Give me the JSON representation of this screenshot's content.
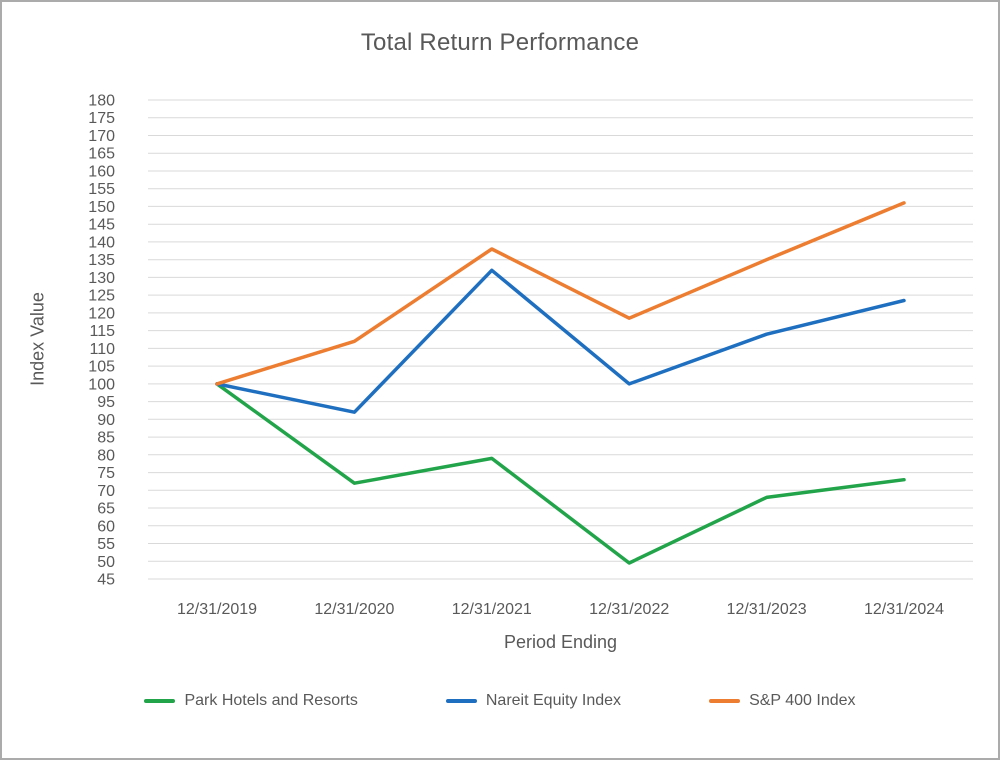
{
  "chart_data": {
    "type": "line",
    "title": "Total Return Performance",
    "xlabel": "Period Ending",
    "ylabel": "Index Value",
    "categories": [
      "12/31/2019",
      "12/31/2020",
      "12/31/2021",
      "12/31/2022",
      "12/31/2023",
      "12/31/2024"
    ],
    "series": [
      {
        "name": "Park Hotels and Resorts",
        "color": "#22A44A",
        "values": [
          100,
          72,
          79,
          49.5,
          68,
          73
        ]
      },
      {
        "name": "Nareit Equity Index",
        "color": "#1F6FC0",
        "values": [
          100,
          92,
          132,
          100,
          114,
          123.5
        ]
      },
      {
        "name": "S&P 400 Index",
        "color": "#EC7D31",
        "values": [
          100,
          112,
          138,
          118.5,
          135,
          151
        ]
      }
    ],
    "y_axis": {
      "min": 45,
      "max": 180,
      "step": 5
    },
    "ylim": [
      45,
      180
    ],
    "grid": true,
    "legend_position": "bottom"
  },
  "style": {
    "grid_color": "#D9D9D9",
    "axis_text_color": "#595959",
    "title_color": "#595959",
    "border_color": "#ABABAB",
    "background": "#FFFFFF"
  }
}
